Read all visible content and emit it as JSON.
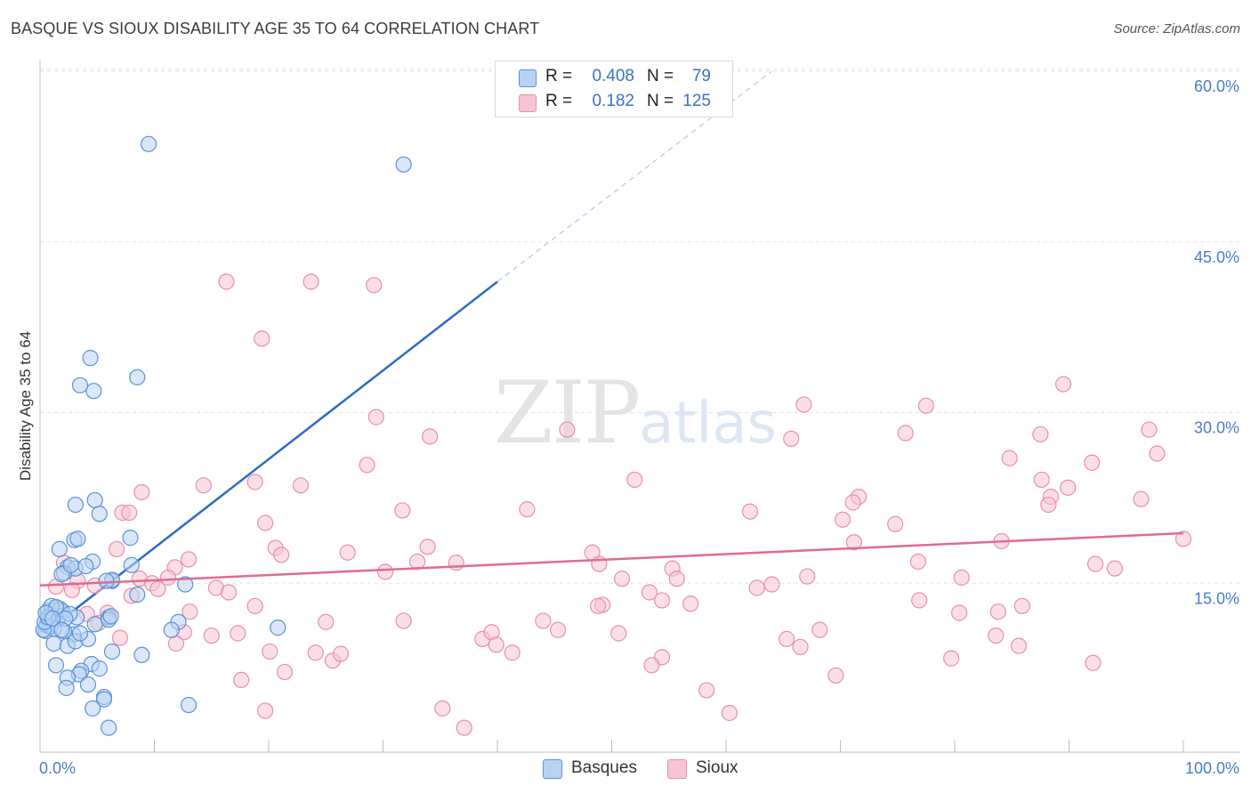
{
  "title": "BASQUE VS SIOUX DISABILITY AGE 35 TO 64 CORRELATION CHART",
  "source": "Source: ZipAtlas.com",
  "watermark": {
    "zip": "ZIP",
    "atlas": "atlas"
  },
  "colors": {
    "basques_fill": "#b9d3f2",
    "basques_stroke": "#5b92d8",
    "basques_line": "#2d6cc6",
    "sioux_fill": "#f7c4d3",
    "sioux_stroke": "#e88fac",
    "sioux_line": "#e06a94"
  },
  "legend": {
    "rows": [
      {
        "r_label": "R =",
        "r_value": "0.408",
        "n_label": "N =",
        "n_value": "79"
      },
      {
        "r_label": "R =",
        "r_value": "0.182",
        "n_label": "N =",
        "n_value": "125"
      }
    ],
    "bottom": [
      "Basques",
      "Sioux"
    ]
  },
  "chart_data": {
    "type": "scatter",
    "title": "BASQUE VS SIOUX DISABILITY AGE 35 TO 64 CORRELATION CHART",
    "xlabel": "",
    "ylabel": "Disability Age 35 to 64",
    "xlim": [
      0,
      100
    ],
    "ylim": [
      0,
      60
    ],
    "x_tick_labels": [
      "0.0%",
      "100.0%"
    ],
    "y_ticks": [
      15,
      30,
      45,
      60
    ],
    "y_tick_labels": [
      "15.0%",
      "30.0%",
      "45.0%",
      "60.0%"
    ],
    "series": [
      {
        "name": "Basques",
        "R": 0.408,
        "N": 79,
        "trend": {
          "x0": 2.8,
          "y0": 12.5,
          "x1": 40.0,
          "y1": 41.5,
          "dash_x1": 64.0,
          "dash_y1": 60.0
        },
        "points": [
          [
            9.5,
            53.6
          ],
          [
            31.8,
            51.8
          ],
          [
            4.4,
            34.8
          ],
          [
            8.5,
            33.1
          ],
          [
            3.5,
            32.4
          ],
          [
            4.7,
            31.9
          ],
          [
            3.1,
            21.9
          ],
          [
            4.8,
            22.3
          ],
          [
            5.2,
            21.1
          ],
          [
            3.0,
            18.8
          ],
          [
            1.7,
            18.0
          ],
          [
            7.9,
            19.0
          ],
          [
            4.6,
            16.9
          ],
          [
            2.4,
            16.4
          ],
          [
            3.1,
            16.3
          ],
          [
            2.1,
            15.9
          ],
          [
            4.0,
            16.5
          ],
          [
            6.3,
            15.2
          ],
          [
            8.0,
            16.6
          ],
          [
            12.7,
            14.9
          ],
          [
            8.5,
            14.0
          ],
          [
            6.3,
            15.3
          ],
          [
            0.7,
            12.6
          ],
          [
            1.3,
            12.6
          ],
          [
            1.0,
            12.2
          ],
          [
            2.0,
            12.5
          ],
          [
            1.7,
            12.1
          ],
          [
            0.6,
            11.4
          ],
          [
            0.8,
            11.7
          ],
          [
            1.5,
            11.8
          ],
          [
            3.2,
            12.0
          ],
          [
            4.8,
            11.4
          ],
          [
            6.0,
            12.0
          ],
          [
            2.9,
            10.5
          ],
          [
            2.1,
            10.8
          ],
          [
            0.5,
            10.8
          ],
          [
            1.2,
            9.7
          ],
          [
            2.4,
            9.5
          ],
          [
            3.1,
            9.9
          ],
          [
            4.2,
            10.1
          ],
          [
            4.5,
            7.9
          ],
          [
            3.6,
            7.3
          ],
          [
            3.4,
            7.0
          ],
          [
            2.4,
            6.7
          ],
          [
            4.2,
            6.1
          ],
          [
            2.3,
            5.8
          ],
          [
            1.4,
            7.8
          ],
          [
            5.2,
            7.5
          ],
          [
            6.3,
            9.0
          ],
          [
            5.6,
            5.0
          ],
          [
            5.6,
            4.8
          ],
          [
            4.6,
            4.0
          ],
          [
            6.0,
            2.3
          ],
          [
            13.0,
            4.3
          ],
          [
            12.1,
            11.6
          ],
          [
            11.5,
            10.9
          ],
          [
            20.8,
            11.1
          ],
          [
            8.9,
            8.7
          ],
          [
            6.0,
            11.8
          ],
          [
            0.6,
            11.3
          ],
          [
            0.9,
            11.2
          ],
          [
            1.2,
            11.0
          ],
          [
            1.8,
            12.7
          ],
          [
            2.6,
            12.3
          ],
          [
            0.3,
            10.9
          ],
          [
            0.4,
            11.6
          ],
          [
            1.0,
            13.0
          ],
          [
            1.4,
            12.9
          ],
          [
            0.7,
            12.0
          ],
          [
            2.2,
            11.9
          ],
          [
            0.5,
            12.4
          ],
          [
            1.1,
            11.9
          ],
          [
            1.9,
            10.9
          ],
          [
            3.5,
            10.6
          ],
          [
            5.8,
            15.2
          ],
          [
            3.3,
            18.9
          ],
          [
            1.9,
            15.8
          ],
          [
            2.7,
            16.6
          ],
          [
            6.2,
            12.1
          ]
        ]
      },
      {
        "name": "Sioux",
        "R": 0.182,
        "N": 125,
        "trend": {
          "x0": 0.0,
          "y0": 14.8,
          "x1": 100.0,
          "y1": 19.4
        },
        "points": [
          [
            16.3,
            41.5
          ],
          [
            23.7,
            41.5
          ],
          [
            29.2,
            41.2
          ],
          [
            19.4,
            36.5
          ],
          [
            29.4,
            29.6
          ],
          [
            34.1,
            27.9
          ],
          [
            46.1,
            28.5
          ],
          [
            65.7,
            27.7
          ],
          [
            66.8,
            30.7
          ],
          [
            77.5,
            30.6
          ],
          [
            89.5,
            32.5
          ],
          [
            97.0,
            28.5
          ],
          [
            97.7,
            26.4
          ],
          [
            75.7,
            28.2
          ],
          [
            84.8,
            26.0
          ],
          [
            87.5,
            28.1
          ],
          [
            92.0,
            25.6
          ],
          [
            28.6,
            25.4
          ],
          [
            52.0,
            24.1
          ],
          [
            18.8,
            23.9
          ],
          [
            22.8,
            23.6
          ],
          [
            14.3,
            23.6
          ],
          [
            8.9,
            23.0
          ],
          [
            7.2,
            21.2
          ],
          [
            7.8,
            21.2
          ],
          [
            31.7,
            21.4
          ],
          [
            42.6,
            21.5
          ],
          [
            62.1,
            21.3
          ],
          [
            71.6,
            22.6
          ],
          [
            71.1,
            22.1
          ],
          [
            74.8,
            20.2
          ],
          [
            70.2,
            20.6
          ],
          [
            88.4,
            22.6
          ],
          [
            88.2,
            21.9
          ],
          [
            89.9,
            23.4
          ],
          [
            96.3,
            22.4
          ],
          [
            87.6,
            24.1
          ],
          [
            19.7,
            20.3
          ],
          [
            20.6,
            18.1
          ],
          [
            26.9,
            17.7
          ],
          [
            33.9,
            18.2
          ],
          [
            21.1,
            17.5
          ],
          [
            6.7,
            18.0
          ],
          [
            2.1,
            16.8
          ],
          [
            3.3,
            15.2
          ],
          [
            13.0,
            17.1
          ],
          [
            11.8,
            16.4
          ],
          [
            11.2,
            15.5
          ],
          [
            8.7,
            15.4
          ],
          [
            9.8,
            15.0
          ],
          [
            10.3,
            14.5
          ],
          [
            15.4,
            14.6
          ],
          [
            16.5,
            14.2
          ],
          [
            8.0,
            13.9
          ],
          [
            1.4,
            14.7
          ],
          [
            4.8,
            14.8
          ],
          [
            5.9,
            12.4
          ],
          [
            4.1,
            12.3
          ],
          [
            1.6,
            12.8
          ],
          [
            18.8,
            13.0
          ],
          [
            25.0,
            11.6
          ],
          [
            31.8,
            11.7
          ],
          [
            44.0,
            11.7
          ],
          [
            36.4,
            16.8
          ],
          [
            33.0,
            16.9
          ],
          [
            30.2,
            16.0
          ],
          [
            48.3,
            17.7
          ],
          [
            48.9,
            16.7
          ],
          [
            50.9,
            15.4
          ],
          [
            55.3,
            16.3
          ],
          [
            55.7,
            15.4
          ],
          [
            62.7,
            14.6
          ],
          [
            64.0,
            14.9
          ],
          [
            67.1,
            15.6
          ],
          [
            71.2,
            18.6
          ],
          [
            76.8,
            16.9
          ],
          [
            80.6,
            15.5
          ],
          [
            84.1,
            18.7
          ],
          [
            92.3,
            16.7
          ],
          [
            94.0,
            16.3
          ],
          [
            100.0,
            18.9
          ],
          [
            13.1,
            12.5
          ],
          [
            15.0,
            10.4
          ],
          [
            17.3,
            10.6
          ],
          [
            20.1,
            9.0
          ],
          [
            24.1,
            8.9
          ],
          [
            25.6,
            8.2
          ],
          [
            26.3,
            8.8
          ],
          [
            38.7,
            10.1
          ],
          [
            39.5,
            10.7
          ],
          [
            39.9,
            9.6
          ],
          [
            41.3,
            8.9
          ],
          [
            45.3,
            10.9
          ],
          [
            49.2,
            13.1
          ],
          [
            50.6,
            10.6
          ],
          [
            53.3,
            14.2
          ],
          [
            54.4,
            13.5
          ],
          [
            56.9,
            13.2
          ],
          [
            65.3,
            10.1
          ],
          [
            66.5,
            9.4
          ],
          [
            68.2,
            10.9
          ],
          [
            76.9,
            13.5
          ],
          [
            79.7,
            8.4
          ],
          [
            80.4,
            12.4
          ],
          [
            83.6,
            10.4
          ],
          [
            83.8,
            12.5
          ],
          [
            85.6,
            9.5
          ],
          [
            85.9,
            13.0
          ],
          [
            92.1,
            8.0
          ],
          [
            54.4,
            8.5
          ],
          [
            53.5,
            7.8
          ],
          [
            58.3,
            5.6
          ],
          [
            60.3,
            3.6
          ],
          [
            69.6,
            6.9
          ],
          [
            48.8,
            13.0
          ],
          [
            35.2,
            4.0
          ],
          [
            37.1,
            2.3
          ],
          [
            19.7,
            3.8
          ],
          [
            17.6,
            6.5
          ],
          [
            21.4,
            7.2
          ],
          [
            12.6,
            10.7
          ],
          [
            11.9,
            9.7
          ],
          [
            7.0,
            10.2
          ],
          [
            2.8,
            14.4
          ],
          [
            5.1,
            11.5
          ]
        ]
      }
    ]
  }
}
